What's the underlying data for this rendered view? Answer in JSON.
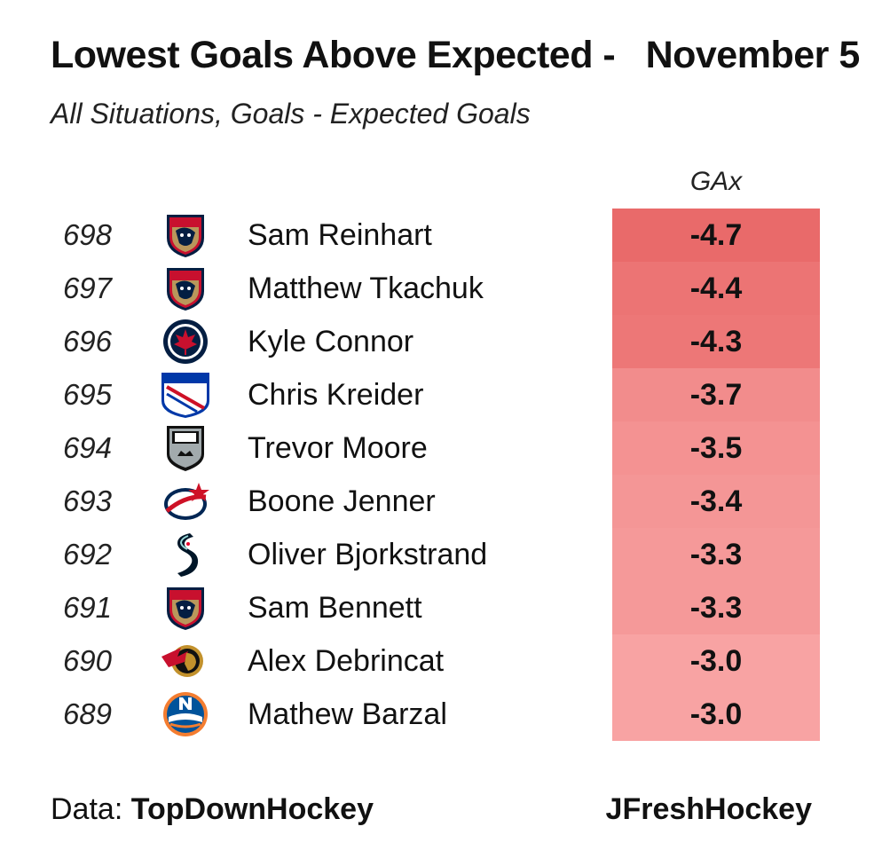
{
  "title_left": "Lowest Goals Above Expected -",
  "title_right": "November 5",
  "subtitle": "All Situations, Goals - Expected Goals",
  "column_header": "GAx",
  "footer": {
    "data_label": "Data:",
    "data_source": "TopDownHockey",
    "credit": "JFreshHockey"
  },
  "colors": {
    "scale_min": "#e96a6a",
    "scale_max": "#f8a3a3"
  },
  "chart_data": {
    "type": "table",
    "title": "Lowest Goals Above Expected -   November 5",
    "subtitle": "All Situations, Goals - Expected Goals",
    "columns": [
      "rank",
      "team",
      "player",
      "GAx"
    ],
    "rows": [
      {
        "rank": "698",
        "team_icon": "florida-panthers-logo-icon",
        "player": "Sam Reinhart",
        "gax": "-4.7"
      },
      {
        "rank": "697",
        "team_icon": "florida-panthers-logo-icon",
        "player": "Matthew Tkachuk",
        "gax": "-4.4"
      },
      {
        "rank": "696",
        "team_icon": "winnipeg-jets-logo-icon",
        "player": "Kyle Connor",
        "gax": "-4.3"
      },
      {
        "rank": "695",
        "team_icon": "new-york-rangers-logo-icon",
        "player": "Chris Kreider",
        "gax": "-3.7"
      },
      {
        "rank": "694",
        "team_icon": "los-angeles-kings-logo-icon",
        "player": "Trevor Moore",
        "gax": "-3.5"
      },
      {
        "rank": "693",
        "team_icon": "columbus-blue-jackets-logo-icon",
        "player": "Boone Jenner",
        "gax": "-3.4"
      },
      {
        "rank": "692",
        "team_icon": "seattle-kraken-logo-icon",
        "player": "Oliver Bjorkstrand",
        "gax": "-3.3"
      },
      {
        "rank": "691",
        "team_icon": "florida-panthers-logo-icon",
        "player": "Sam Bennett",
        "gax": "-3.3"
      },
      {
        "rank": "690",
        "team_icon": "ottawa-senators-logo-icon",
        "player": "Alex Debrincat",
        "gax": "-3.0"
      },
      {
        "rank": "689",
        "team_icon": "new-york-islanders-logo-icon",
        "player": "Mathew Barzal",
        "gax": "-3.0"
      }
    ]
  }
}
